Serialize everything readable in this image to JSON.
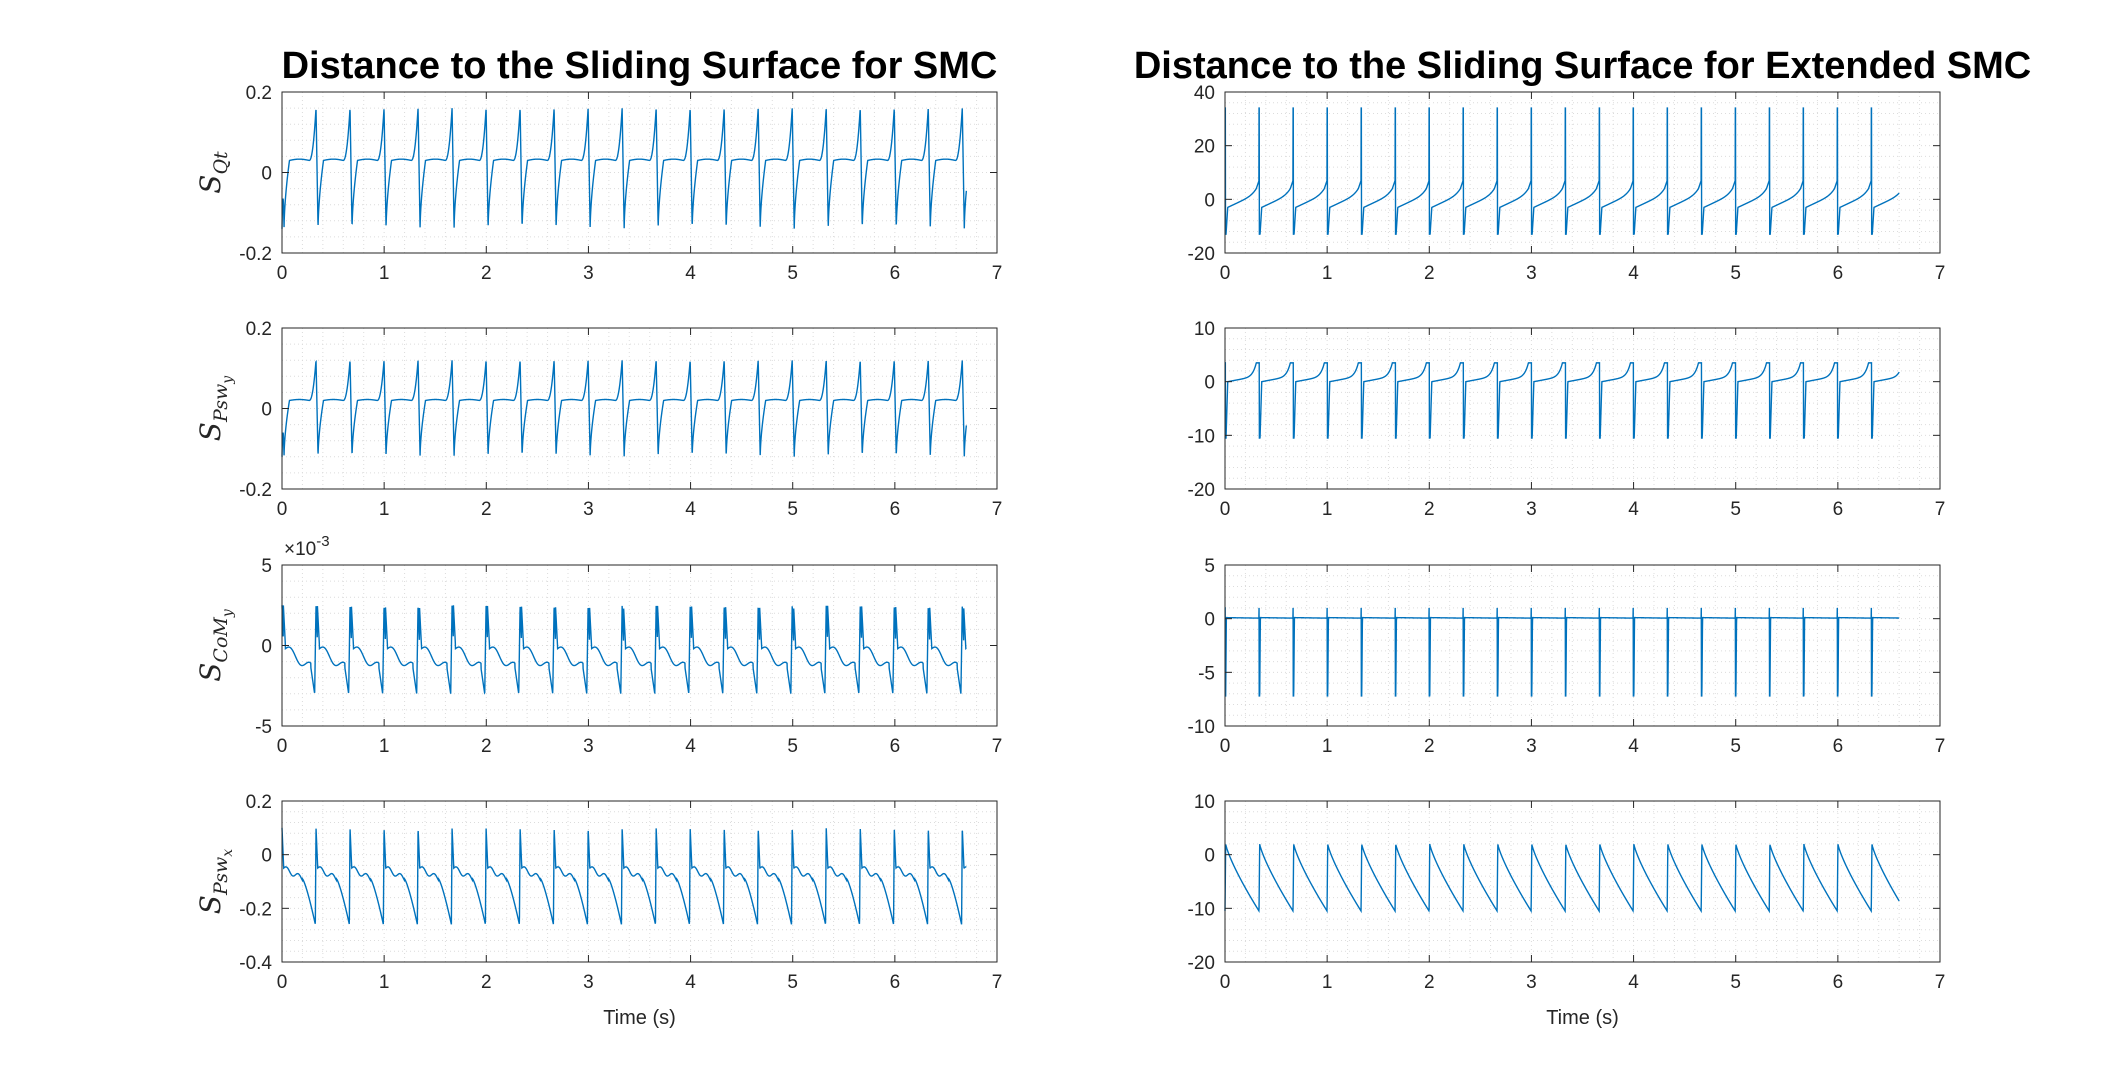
{
  "figure": {
    "titles": [
      "Distance to the Sliding Surface for SMC",
      "Distance to the Sliding Surface for Extended SMC"
    ],
    "xlabel": "Time (s)",
    "colors": {
      "line": "#0072BD",
      "axes": "#262626",
      "grid": "#dcdcdc"
    }
  },
  "chart_data": [
    {
      "id": "l1",
      "col": 0,
      "row": 0,
      "type": "line",
      "title": "Distance to the Sliding Surface for SMC",
      "ylabel": {
        "main": "S",
        "sub": "Qt"
      },
      "xlim": [
        0,
        7
      ],
      "ylim": [
        -0.2,
        0.2
      ],
      "xticks": [
        0,
        1,
        2,
        3,
        4,
        5,
        6,
        7
      ],
      "yticks": [
        -0.2,
        0,
        0.2
      ],
      "ytick_labels": [
        "-0.2",
        "0",
        "0.2"
      ],
      "grid": true,
      "signal": {
        "period": 0.333,
        "cycles": 20,
        "t_end": 6.7,
        "peak": 0.16,
        "trough": -0.14,
        "baseline": 0.03,
        "shape": "smc"
      }
    },
    {
      "id": "l2",
      "col": 0,
      "row": 1,
      "type": "line",
      "ylabel": {
        "main": "S",
        "sub": "Psw",
        "subsub": "y"
      },
      "xlim": [
        0,
        7
      ],
      "ylim": [
        -0.2,
        0.2
      ],
      "xticks": [
        0,
        1,
        2,
        3,
        4,
        5,
        6,
        7
      ],
      "yticks": [
        -0.2,
        0,
        0.2
      ],
      "ytick_labels": [
        "-0.2",
        "0",
        "0.2"
      ],
      "grid": true,
      "signal": {
        "period": 0.333,
        "cycles": 20,
        "t_end": 6.7,
        "peak": 0.12,
        "trough": -0.12,
        "baseline": 0.02,
        "shape": "smc"
      }
    },
    {
      "id": "l3",
      "col": 0,
      "row": 2,
      "type": "line",
      "ylabel": {
        "main": "S",
        "sub": "CoM",
        "subsub": "y"
      },
      "xlim": [
        0,
        7
      ],
      "ylim": [
        -5,
        5
      ],
      "exponent": "×10",
      "exponent_power": "-3",
      "xticks": [
        0,
        1,
        2,
        3,
        4,
        5,
        6,
        7
      ],
      "yticks": [
        -5,
        0,
        5
      ],
      "ytick_labels": [
        "-5",
        "0",
        "5"
      ],
      "grid": true,
      "signal": {
        "period": 0.333,
        "cycles": 20,
        "t_end": 6.7,
        "peak": 2.5,
        "trough": -3.0,
        "baseline": -0.5,
        "shape": "com"
      }
    },
    {
      "id": "l4",
      "col": 0,
      "row": 3,
      "type": "line",
      "xlabel": "Time (s)",
      "ylabel": {
        "main": "S",
        "sub": "Psw",
        "subsub": "x"
      },
      "xlim": [
        0,
        7
      ],
      "ylim": [
        -0.4,
        0.2
      ],
      "xticks": [
        0,
        1,
        2,
        3,
        4,
        5,
        6,
        7
      ],
      "yticks": [
        -0.4,
        -0.2,
        0,
        0.2
      ],
      "ytick_labels": [
        "-0.4",
        "-0.2",
        "0",
        "0.2"
      ],
      "grid": true,
      "signal": {
        "period": 0.333,
        "cycles": 20,
        "t_end": 6.7,
        "peak": 0.1,
        "trough": -0.26,
        "baseline": -0.05,
        "shape": "pswx"
      }
    },
    {
      "id": "r1",
      "col": 1,
      "row": 0,
      "type": "line",
      "title": "Distance to the Sliding Surface for Extended SMC",
      "xlim": [
        0,
        7
      ],
      "ylim": [
        -20,
        40
      ],
      "xticks": [
        0,
        1,
        2,
        3,
        4,
        5,
        6,
        7
      ],
      "yticks": [
        -20,
        0,
        20,
        40
      ],
      "ytick_labels": [
        "-20",
        "0",
        "20",
        "40"
      ],
      "grid": true,
      "signal": {
        "period": 0.333,
        "cycles": 20,
        "t_end": 6.6,
        "peak": 34,
        "trough": -13,
        "baseline": 2,
        "shape": "ext"
      }
    },
    {
      "id": "r2",
      "col": 1,
      "row": 1,
      "type": "line",
      "xlim": [
        0,
        7
      ],
      "ylim": [
        -20,
        10
      ],
      "xticks": [
        0,
        1,
        2,
        3,
        4,
        5,
        6,
        7
      ],
      "yticks": [
        -20,
        -10,
        0,
        10
      ],
      "ytick_labels": [
        "-20",
        "-10",
        "0",
        "10"
      ],
      "grid": true,
      "signal": {
        "period": 0.333,
        "cycles": 20,
        "t_end": 6.6,
        "peak": 3.5,
        "trough": -10.5,
        "baseline": 0.5,
        "shape": "ext2"
      }
    },
    {
      "id": "r3",
      "col": 1,
      "row": 2,
      "type": "line",
      "xlim": [
        0,
        7
      ],
      "ylim": [
        -10,
        5
      ],
      "xticks": [
        0,
        1,
        2,
        3,
        4,
        5,
        6,
        7
      ],
      "yticks": [
        -10,
        -5,
        0,
        5
      ],
      "ytick_labels": [
        "-10",
        "-5",
        "0",
        "5"
      ],
      "grid": true,
      "signal": {
        "period": 0.333,
        "cycles": 20,
        "t_end": 6.6,
        "peak": 1.0,
        "trough": -7.2,
        "baseline": 0.1,
        "shape": "spike"
      }
    },
    {
      "id": "r4",
      "col": 1,
      "row": 3,
      "type": "line",
      "xlabel": "Time (s)",
      "xlim": [
        0,
        7
      ],
      "ylim": [
        -20,
        10
      ],
      "xticks": [
        0,
        1,
        2,
        3,
        4,
        5,
        6,
        7
      ],
      "yticks": [
        -20,
        -10,
        0,
        10
      ],
      "ytick_labels": [
        "-20",
        "-10",
        "0",
        "10"
      ],
      "grid": true,
      "signal": {
        "period": 0.333,
        "cycles": 20,
        "t_end": 6.6,
        "peak": 2,
        "trough": -10.5,
        "baseline": 0,
        "shape": "saw"
      }
    }
  ]
}
